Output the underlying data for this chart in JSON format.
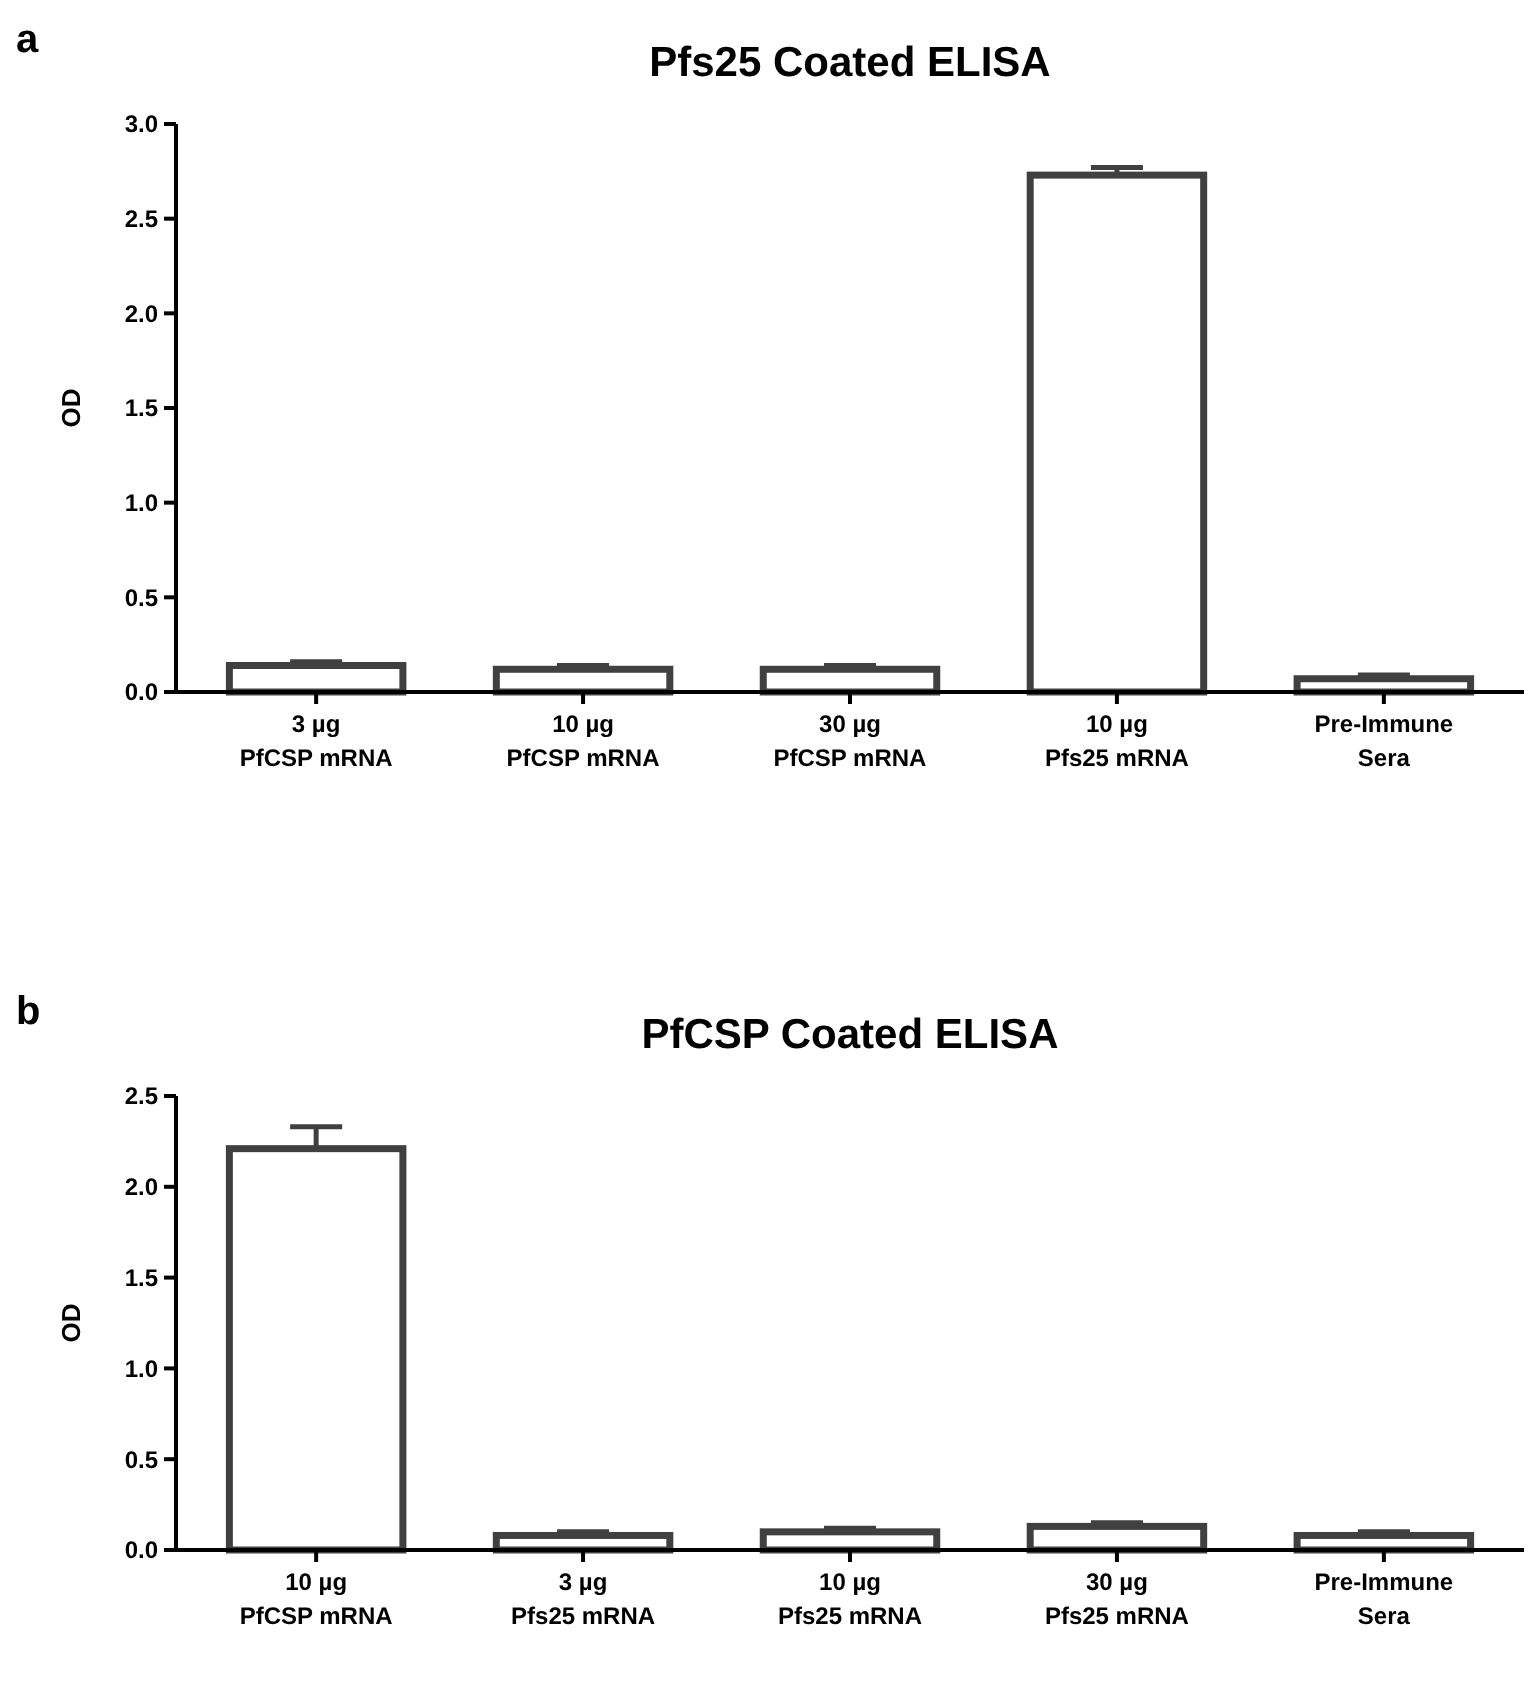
{
  "chart_data": [
    {
      "type": "bar",
      "title": "Pfs25 Coated ELISA",
      "ylabel": "OD",
      "annotations": [
        "a"
      ],
      "categories": [
        "3 µg\nPfCSP mRNA",
        "10 µg\nPfCSP mRNA",
        "30 µg\nPfCSP mRNA",
        "10 µg\nPfs25 mRNA",
        "Pre-Immune\nSera"
      ],
      "values": [
        0.14,
        0.12,
        0.12,
        2.73,
        0.07
      ],
      "errors": [
        0.02,
        0.02,
        0.02,
        0.04,
        0.02
      ],
      "color": "#404040",
      "ylim": [
        0,
        3
      ],
      "yticks": [
        {
          "value": 0,
          "label": "0.0"
        },
        {
          "value": 0.5,
          "label": "0.5"
        },
        {
          "value": 1,
          "label": "1.0"
        },
        {
          "value": 1.5,
          "label": "1.5"
        },
        {
          "value": 2,
          "label": "2.0"
        },
        {
          "value": 2.5,
          "label": "2.5"
        },
        {
          "value": 3,
          "label": "3.0"
        }
      ]
    },
    {
      "type": "bar",
      "title": "PfCSP Coated ELISA",
      "ylabel": "OD",
      "annotations": [
        "b"
      ],
      "categories": [
        "10 µg\nPfCSP mRNA",
        "3 µg\nPfs25 mRNA",
        "10 µg\nPfs25 mRNA",
        "30 µg\nPfs25 mRNA",
        "Pre-Immune\nSera"
      ],
      "values": [
        2.21,
        0.08,
        0.1,
        0.13,
        0.08
      ],
      "errors": [
        0.12,
        0.02,
        0.02,
        0.02,
        0.02
      ],
      "color": "#404040",
      "ylim": [
        0,
        2.5
      ],
      "yticks": [
        {
          "value": 0,
          "label": "0.0"
        },
        {
          "value": 0.5,
          "label": "0.5"
        },
        {
          "value": 1,
          "label": "1.0"
        },
        {
          "value": 1.5,
          "label": "1.5"
        },
        {
          "value": 2,
          "label": "2.0"
        },
        {
          "value": 2.5,
          "label": "2.5"
        }
      ]
    }
  ]
}
